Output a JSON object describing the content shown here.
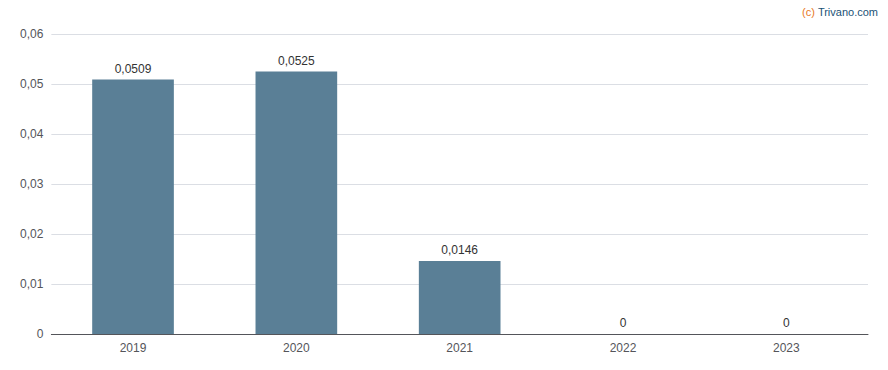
{
  "chart_data": {
    "type": "bar",
    "categories": [
      "2019",
      "2020",
      "2021",
      "2022",
      "2023"
    ],
    "values": [
      0.0509,
      0.0525,
      0.0146,
      0,
      0
    ],
    "value_labels": [
      "0,0509",
      "0,0525",
      "0,0146",
      "0",
      "0"
    ],
    "data_labels": true,
    "color": "#5a7f96",
    "ylim": [
      0,
      0.06
    ],
    "yticks": [
      0,
      {
        "value": 0.01,
        "label": "0,01"
      },
      {
        "value": 0.02,
        "label": "0,02"
      },
      {
        "value": 0.03,
        "label": "0,03"
      },
      {
        "value": 0.04,
        "label": "0,04"
      },
      {
        "value": 0.05,
        "label": "0,05"
      },
      {
        "value": 0.06,
        "label": "0,06"
      }
    ],
    "grid": true,
    "annotations": [
      {
        "text": "(c)",
        "color": "#e87722"
      },
      {
        "text": "Trivano.com",
        "color": "#1a5276"
      }
    ]
  }
}
